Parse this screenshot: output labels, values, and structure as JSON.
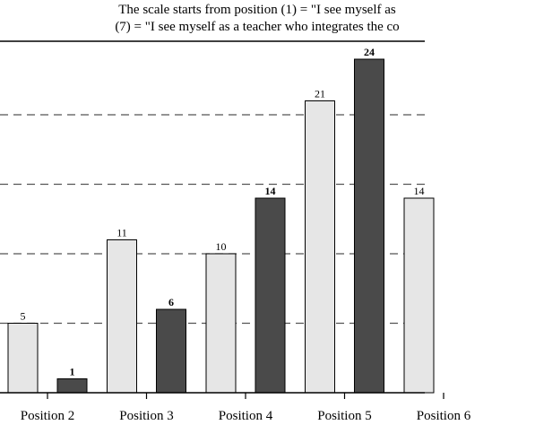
{
  "chart_data": {
    "type": "bar",
    "title_lines": [
      "The scale starts from position (1) = \"I see myself as",
      "(7) = \"I see myself as a teacher who integrates the co"
    ],
    "categories": [
      "Position 2",
      "Position 3",
      "Position 4",
      "Position 5",
      "Position 6"
    ],
    "series": [
      {
        "values": [
          5,
          11,
          10,
          21,
          14
        ],
        "color": "#e6e6e6"
      },
      {
        "values": [
          1,
          6,
          14,
          24,
          null
        ],
        "color": "#4a4a4a"
      }
    ],
    "ylim": [
      0,
      25
    ],
    "grid": "dashed horizontal",
    "gridlines": [
      5,
      10,
      15,
      20
    ]
  }
}
